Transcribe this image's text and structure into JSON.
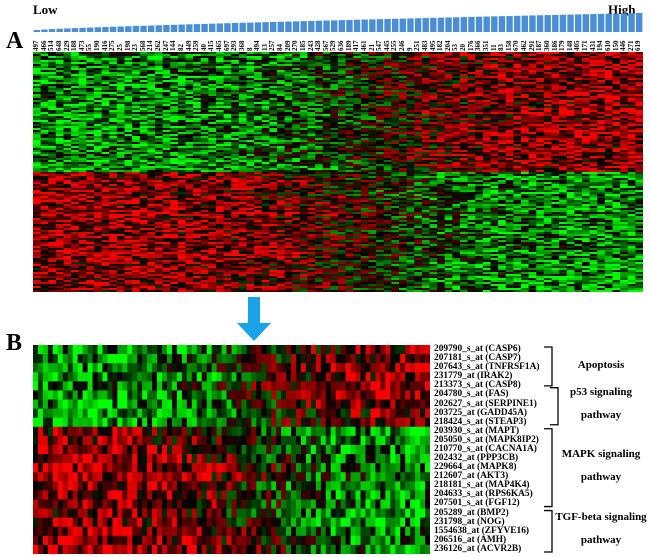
{
  "panel_a": {
    "letter": "A",
    "low_label": "Low",
    "high_label": "High"
  },
  "panel_b": {
    "letter": "B"
  },
  "colors": {
    "up": "#ff0000",
    "down": "#00ff00",
    "neutral": "#000000",
    "bar": "#4a8fd6",
    "arrow": "#1aa3e8"
  },
  "chart_data": {
    "type": "heatmap",
    "samples": [
      "497",
      "466",
      "514",
      "648",
      "229",
      "188",
      "473",
      "55",
      "190",
      "416",
      "275",
      "25",
      "198",
      "23",
      "568",
      "214",
      "262",
      "247",
      "144",
      "82",
      "449",
      "259",
      "40",
      "415",
      "465",
      "697",
      "293",
      "368",
      "8",
      "494",
      "13",
      "257",
      "84",
      "209",
      "270",
      "185",
      "243",
      "428",
      "567",
      "529",
      "636",
      "189",
      "417",
      "461",
      "21",
      "547",
      "445",
      "255",
      "246",
      "9",
      "251",
      "483",
      "495",
      "182",
      "204",
      "53",
      "20",
      "176",
      "366",
      "351",
      "11",
      "83",
      "158",
      "670",
      "462",
      "291",
      "187",
      "360",
      "186",
      "179",
      "148",
      "405",
      "171",
      "431",
      "194",
      "610",
      "150",
      "446",
      "271",
      "619"
    ],
    "sample_order": "ascending expression, Low to High",
    "genes_b": [
      {
        "label": "209790_s_at (CASP6)",
        "direction": "up_in_high"
      },
      {
        "label": "207181_s_at (CASP7)",
        "direction": "up_in_high"
      },
      {
        "label": "207643_s_at (TNFRSF1A)",
        "direction": "up_in_high"
      },
      {
        "label": "231779_at (IRAK2)",
        "direction": "up_in_high"
      },
      {
        "label": "213373_s_at (CASP8)",
        "direction": "up_in_high"
      },
      {
        "label": "204780_s_at (FAS)",
        "direction": "up_in_high"
      },
      {
        "label": "202627_s_at (SERPINE1)",
        "direction": "up_in_high"
      },
      {
        "label": "203725_at (GADD45A)",
        "direction": "up_in_high"
      },
      {
        "label": "218424_s_at (STEAP3)",
        "direction": "up_in_high"
      },
      {
        "label": "203930_s_at (MAPT)",
        "direction": "down_in_high"
      },
      {
        "label": "205050_s_at (MAPK8IP2)",
        "direction": "down_in_high"
      },
      {
        "label": "210770_s_at (CACNA1A)",
        "direction": "down_in_high"
      },
      {
        "label": "202432_at (PPP3CB)",
        "direction": "down_in_high"
      },
      {
        "label": "229664_at (MAPK8)",
        "direction": "down_in_high"
      },
      {
        "label": "212607_at (AKT3)",
        "direction": "down_in_high"
      },
      {
        "label": "218181_s_at (MAP4K4)",
        "direction": "down_in_high"
      },
      {
        "label": "204633_s_at (RPS6KA5)",
        "direction": "down_in_high"
      },
      {
        "label": "207501_s_at (FGF12)",
        "direction": "down_in_high"
      },
      {
        "label": "205289_at (BMP2)",
        "direction": "down_in_high"
      },
      {
        "label": "231798_at (NOG)",
        "direction": "down_in_high"
      },
      {
        "label": "1554638_at (ZFYVE16)",
        "direction": "down_in_high"
      },
      {
        "label": "206516_at (AMH)",
        "direction": "down_in_high"
      },
      {
        "label": "236126_at (ACVR2B)",
        "direction": "down_in_high"
      }
    ],
    "pathways": [
      {
        "line1": "Apoptosis",
        "line2": "",
        "first_gene": 0,
        "last_gene": 4
      },
      {
        "line1": "p53 signaling",
        "line2": "pathway",
        "first_gene": 4,
        "last_gene": 8
      },
      {
        "line1": "MAPK signaling",
        "line2": "pathway",
        "first_gene": 9,
        "last_gene": 17
      },
      {
        "line1": "TGF-beta signaling",
        "line2": "pathway",
        "first_gene": 18,
        "last_gene": 22
      }
    ],
    "panel_a_clusters": [
      {
        "name": "up_in_high",
        "rows": 60
      },
      {
        "name": "down_in_high",
        "rows": 60
      }
    ],
    "color_scale": {
      "min": -1,
      "max": 1,
      "low_color": "green",
      "mid_color": "black",
      "high_color": "red"
    }
  }
}
